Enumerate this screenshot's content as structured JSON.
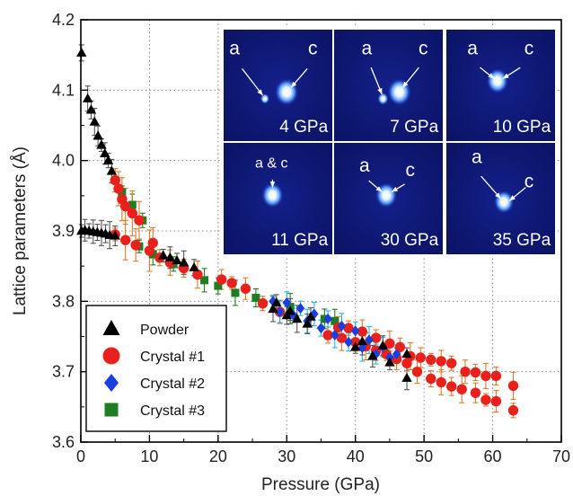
{
  "chart_data": {
    "type": "scatter",
    "xlabel": "Pressure (GPa)",
    "ylabel": "Lattice parameters (Å)",
    "xlim": [
      0,
      70
    ],
    "ylim": [
      3.6,
      4.2
    ],
    "x_ticks": [
      "0",
      "10",
      "20",
      "30",
      "40",
      "50",
      "60",
      "70"
    ],
    "y_ticks": [
      "3.6",
      "3.7",
      "3.8",
      "3.9",
      "4.0",
      "4.1",
      "4.2"
    ],
    "grid": "dotted",
    "legend_position": "bottom-left",
    "series": [
      {
        "name": "Powder",
        "marker": "triangle",
        "color": "#000000",
        "error_color": "#555555",
        "a_branch": [
          [
            0.1,
            3.9
          ],
          [
            0.6,
            3.901
          ],
          [
            1.2,
            3.9
          ],
          [
            1.8,
            3.899
          ],
          [
            2.4,
            3.898
          ],
          [
            3.0,
            3.897
          ],
          [
            3.6,
            3.896
          ],
          [
            4.2,
            3.894
          ],
          [
            5.0,
            3.893
          ],
          [
            12.0,
            3.865
          ],
          [
            13.0,
            3.862
          ],
          [
            14.0,
            3.858
          ],
          [
            15.0,
            3.855
          ],
          [
            16.5,
            3.848
          ],
          [
            28.0,
            3.789
          ],
          [
            30.0,
            3.78
          ],
          [
            31.5,
            3.775
          ],
          [
            33.0,
            3.768
          ],
          [
            40.0,
            3.735
          ],
          [
            42.5,
            3.722
          ],
          [
            45.0,
            3.713
          ],
          [
            47.5,
            3.691
          ]
        ],
        "c_branch": [
          [
            0.1,
            4.153
          ],
          [
            1.0,
            4.088
          ],
          [
            1.5,
            4.072
          ],
          [
            2.0,
            4.055
          ],
          [
            2.5,
            4.035
          ],
          [
            3.0,
            4.022
          ],
          [
            3.5,
            4.01
          ],
          [
            4.0,
            4.0
          ],
          [
            4.5,
            3.985
          ],
          [
            28.5,
            3.798
          ],
          [
            30.5,
            3.786
          ],
          [
            33.5,
            3.778
          ],
          [
            41.0,
            3.743
          ],
          [
            44.0,
            3.737
          ],
          [
            47.5,
            3.725
          ]
        ]
      },
      {
        "name": "Crystal #1",
        "marker": "circle",
        "color": "#e8211c",
        "error_color": "#e07b26",
        "a_branch": [
          [
            5.0,
            3.895
          ],
          [
            6.5,
            3.887
          ],
          [
            8.0,
            3.88
          ],
          [
            10.0,
            3.872
          ],
          [
            11.5,
            3.862
          ],
          [
            13.0,
            3.855
          ],
          [
            15.0,
            3.847
          ],
          [
            17.0,
            3.838
          ],
          [
            20.5,
            3.831
          ],
          [
            22.0,
            3.826
          ],
          [
            24.0,
            3.818
          ],
          [
            26.5,
            3.797
          ],
          [
            29.0,
            3.785
          ],
          [
            36.0,
            3.752
          ],
          [
            38.0,
            3.748
          ],
          [
            40.0,
            3.742
          ],
          [
            41.5,
            3.736
          ],
          [
            43.0,
            3.73
          ],
          [
            44.5,
            3.725
          ],
          [
            46.0,
            3.718
          ],
          [
            47.5,
            3.712
          ],
          [
            49.0,
            3.7
          ],
          [
            51.0,
            3.69
          ],
          [
            52.5,
            3.685
          ],
          [
            54.0,
            3.679
          ],
          [
            55.5,
            3.675
          ],
          [
            57.5,
            3.67
          ],
          [
            59.0,
            3.66
          ],
          [
            60.5,
            3.658
          ],
          [
            63.0,
            3.645
          ]
        ],
        "c_branch": [
          [
            5.0,
            3.972
          ],
          [
            5.5,
            3.96
          ],
          [
            6.0,
            3.945
          ],
          [
            6.5,
            3.935
          ],
          [
            7.5,
            3.925
          ],
          [
            8.5,
            3.915
          ],
          [
            10.5,
            3.883
          ],
          [
            37.5,
            3.763
          ],
          [
            39.0,
            3.762
          ],
          [
            41.0,
            3.757
          ],
          [
            43.0,
            3.748
          ],
          [
            45.0,
            3.74
          ],
          [
            46.5,
            3.735
          ],
          [
            48.0,
            3.722
          ],
          [
            49.5,
            3.72
          ],
          [
            51.0,
            3.717
          ],
          [
            52.5,
            3.715
          ],
          [
            54.0,
            3.712
          ],
          [
            56.0,
            3.7
          ],
          [
            57.5,
            3.699
          ],
          [
            59.0,
            3.694
          ],
          [
            60.5,
            3.694
          ],
          [
            63.0,
            3.68
          ]
        ]
      },
      {
        "name": "Crystal #2",
        "marker": "diamond",
        "color": "#1a3ee0",
        "error_color": "#26b5e0",
        "a_branch": [
          [
            28.0,
            3.8
          ],
          [
            30.0,
            3.798
          ],
          [
            32.0,
            3.79
          ],
          [
            34.0,
            3.782
          ],
          [
            36.0,
            3.775
          ],
          [
            38.0,
            3.765
          ],
          [
            40.0,
            3.758
          ],
          [
            42.0,
            3.745
          ],
          [
            44.0,
            3.735
          ],
          [
            46.0,
            3.725
          ]
        ],
        "c_branch": [
          [
            29.0,
            3.785
          ],
          [
            31.0,
            3.78
          ],
          [
            33.0,
            3.772
          ],
          [
            35.0,
            3.762
          ],
          [
            37.0,
            3.752
          ],
          [
            39.0,
            3.742
          ],
          [
            41.0,
            3.734
          ],
          [
            43.0,
            3.725
          ],
          [
            45.0,
            3.72
          ]
        ]
      },
      {
        "name": "Crystal #3",
        "marker": "square",
        "color": "#1e7d22",
        "error_color": "#1e7d22",
        "a_branch": [
          [
            8.5,
            3.878
          ],
          [
            10.5,
            3.867
          ],
          [
            13.5,
            3.853
          ],
          [
            18.0,
            3.83
          ],
          [
            20.0,
            3.822
          ],
          [
            22.5,
            3.812
          ],
          [
            25.5,
            3.805
          ],
          [
            30.5,
            3.792
          ],
          [
            35.5,
            3.775
          ]
        ],
        "c_branch": [
          [
            6.0,
            3.955
          ],
          [
            7.5,
            3.937
          ],
          [
            9.0,
            3.915
          ],
          [
            37.0,
            3.772
          ]
        ]
      }
    ],
    "inset_panels": [
      {
        "pressure": "4 GPa",
        "labels": [
          "a",
          "c"
        ]
      },
      {
        "pressure": "7 GPa",
        "labels": [
          "a",
          "c"
        ]
      },
      {
        "pressure": "10 GPa",
        "labels": [
          "a",
          "c"
        ]
      },
      {
        "pressure": "11 GPa",
        "labels": [
          "a & c"
        ]
      },
      {
        "pressure": "30 GPa",
        "labels": [
          "a",
          "c"
        ]
      },
      {
        "pressure": "35 GPa",
        "labels": [
          "a",
          "c"
        ]
      }
    ]
  }
}
